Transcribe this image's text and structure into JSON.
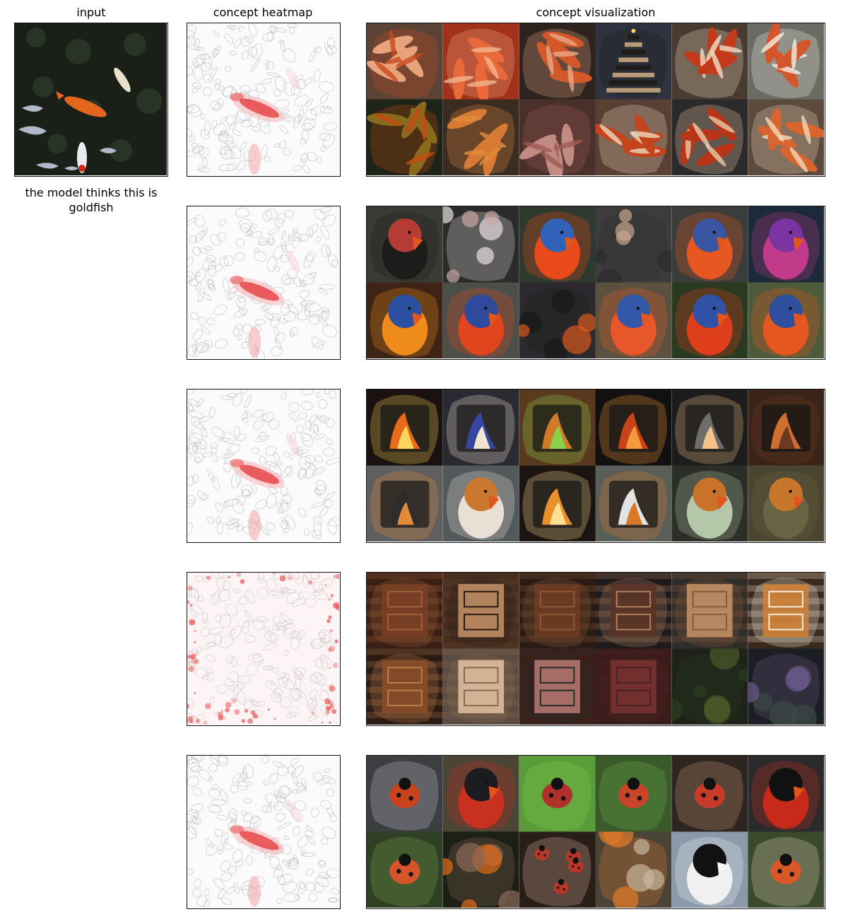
{
  "headers": {
    "input": "input",
    "heatmap": "concept heatmap",
    "visualization": "concept visualization"
  },
  "caption": "the model thinks this is goldfish",
  "input_image": {
    "description_icon": "koi-pond-photo",
    "colors": {
      "water": "#1a1f18",
      "fish": "#e4661e",
      "ripple": "#c9d4ea"
    }
  },
  "concepts": [
    {
      "heatmap_style": "fish-highlight",
      "tiles": [
        {
          "icon": "crab-legs",
          "bg": "#5b4335",
          "fg": "#e8a27c",
          "accent": "#c84a1e"
        },
        {
          "icon": "crab-legs",
          "bg": "#a2331a",
          "fg": "#e9693a",
          "accent": "#f3b58f"
        },
        {
          "icon": "crab-legs",
          "bg": "#2d241f",
          "fg": "#d2582a",
          "accent": "#e9a783"
        },
        {
          "icon": "pagoda",
          "bg": "#2f3340",
          "fg": "#b99a78",
          "accent": "#1e1b18"
        },
        {
          "icon": "crab-legs",
          "bg": "#4a3b31",
          "fg": "#c23a1a",
          "accent": "#f0e0c5"
        },
        {
          "icon": "crab-legs",
          "bg": "#6b6b66",
          "fg": "#d4562b",
          "accent": "#f3efe6"
        },
        {
          "icon": "goldfish-bowl",
          "bg": "#1f2418",
          "fg": "#8a6b1e",
          "accent": "#c64a12"
        },
        {
          "icon": "crab-claw",
          "bg": "#3b2c22",
          "fg": "#d67a34",
          "accent": "#e38b3c"
        },
        {
          "icon": "salmon-dish",
          "bg": "#4a302a",
          "fg": "#c18b82",
          "accent": "#9e5b52"
        },
        {
          "icon": "crab-legs",
          "bg": "#5a3f33",
          "fg": "#c4441c",
          "accent": "#ecd7bf"
        },
        {
          "icon": "crab-legs",
          "bg": "#2b2a2b",
          "fg": "#b93518",
          "accent": "#e8c9a9"
        },
        {
          "icon": "crab-legs",
          "bg": "#5c4a3d",
          "fg": "#d9642d",
          "accent": "#efd9b6"
        }
      ]
    },
    {
      "heatmap_style": "fish-highlight",
      "tiles": [
        {
          "icon": "flamingo",
          "bg": "#3a3b35",
          "fg": "#b53b35",
          "accent": "#1c1c1a"
        },
        {
          "icon": "sea-slug",
          "bg": "#2b2b2b",
          "fg": "#c9a7a4",
          "accent": "#e8e0e0"
        },
        {
          "icon": "lorikeet",
          "bg": "#2f3a2e",
          "fg": "#2f62b8",
          "accent": "#e84a1a"
        },
        {
          "icon": "person-lying",
          "bg": "#3c3c3c",
          "fg": "#c9a790",
          "accent": "#2b2b2b"
        },
        {
          "icon": "lorikeet",
          "bg": "#3a3d39",
          "fg": "#3a55a2",
          "accent": "#e65722"
        },
        {
          "icon": "bird-purple",
          "bg": "#1d2a3a",
          "fg": "#7c33a2",
          "accent": "#c23a8a"
        },
        {
          "icon": "lorikeet",
          "bg": "#3e2417",
          "fg": "#2c4fa0",
          "accent": "#ef8b1a"
        },
        {
          "icon": "lorikeet",
          "bg": "#4a4f4a",
          "fg": "#2f4a9c",
          "accent": "#e0451e"
        },
        {
          "icon": "tool",
          "bg": "#2c2a2e",
          "fg": "#d9591d",
          "accent": "#181818"
        },
        {
          "icon": "lorikeet",
          "bg": "#5a523f",
          "fg": "#3458a8",
          "accent": "#e6582a"
        },
        {
          "icon": "lorikeet",
          "bg": "#2a3a21",
          "fg": "#2f52a6",
          "accent": "#df3e1c"
        },
        {
          "icon": "lorikeet",
          "bg": "#4f5a3a",
          "fg": "#2e4f9e",
          "accent": "#e5571f"
        }
      ]
    },
    {
      "heatmap_style": "fish-highlight",
      "tiles": [
        {
          "icon": "fireplace",
          "bg": "#1a1210",
          "fg": "#e96a1a",
          "accent": "#ffd45a"
        },
        {
          "icon": "stove",
          "bg": "#2a2a33",
          "fg": "#3545a0",
          "accent": "#f2e4d0"
        },
        {
          "icon": "fire-glow",
          "bg": "#5a3a1f",
          "fg": "#d07a2a",
          "accent": "#8ad04a"
        },
        {
          "icon": "fireplace",
          "bg": "#121010",
          "fg": "#c8431a",
          "accent": "#f59a3a"
        },
        {
          "icon": "stove",
          "bg": "#1c1c1c",
          "fg": "#6d6d6d",
          "accent": "#f6c28a"
        },
        {
          "icon": "grate",
          "bg": "#3a2418",
          "fg": "#d07030",
          "accent": "#6b3a20"
        },
        {
          "icon": "pellet-stove",
          "bg": "#5f5f60",
          "fg": "#2c2c2c",
          "accent": "#e28a3a"
        },
        {
          "icon": "robin",
          "bg": "#51595a",
          "fg": "#c9782e",
          "accent": "#e9e0d5"
        },
        {
          "icon": "fire-glow",
          "bg": "#1c1411",
          "fg": "#e8902a",
          "accent": "#fde092"
        },
        {
          "icon": "oven",
          "bg": "#5a5e58",
          "fg": "#e1e4e0",
          "accent": "#d87a2a"
        },
        {
          "icon": "robin",
          "bg": "#2c2f28",
          "fg": "#c8722a",
          "accent": "#b4c7a8"
        },
        {
          "icon": "robin",
          "bg": "#4a4530",
          "fg": "#c7772b",
          "accent": "#6b6444"
        }
      ]
    },
    {
      "heatmap_style": "edge-scatter",
      "tiles": [
        {
          "icon": "wood-door",
          "bg": "#3a1f14",
          "fg": "#7a3f24",
          "accent": "#a0603b"
        },
        {
          "icon": "wood-panel",
          "bg": "#4f3424",
          "fg": "#c6946a",
          "accent": "#2a1a12"
        },
        {
          "icon": "wood-door",
          "bg": "#2a1c15",
          "fg": "#6e3c22",
          "accent": "#8c5838"
        },
        {
          "icon": "dresser",
          "bg": "#1e1a1c",
          "fg": "#5a3324",
          "accent": "#b08060"
        },
        {
          "icon": "dresser",
          "bg": "#2f2d2a",
          "fg": "#c9956a",
          "accent": "#8a5a3a"
        },
        {
          "icon": "wood-cabinet",
          "bg": "#3a2a1d",
          "fg": "#d48235",
          "accent": "#f6eadb"
        },
        {
          "icon": "wood-cabinet",
          "bg": "#2a1b15",
          "fg": "#8a4e2a",
          "accent": "#bc7c48"
        },
        {
          "icon": "wood-panel",
          "bg": "#5b4b40",
          "fg": "#e3c4a3",
          "accent": "#8a6a52"
        },
        {
          "icon": "red-panel",
          "bg": "#3a2018",
          "fg": "#b87a72",
          "accent": "#2a2a2a"
        },
        {
          "icon": "red-panel",
          "bg": "#3a1c1b",
          "fg": "#7a3330",
          "accent": "#4a2424"
        },
        {
          "icon": "pond",
          "bg": "#1e2218",
          "fg": "#4b5a2a",
          "accent": "#2b3d21"
        },
        {
          "icon": "tree",
          "bg": "#1b1e22",
          "fg": "#3a4a45",
          "accent": "#6a5a8a"
        }
      ]
    },
    {
      "heatmap_style": "fish-highlight",
      "tiles": [
        {
          "icon": "ladybug",
          "bg": "#3c3e40",
          "fg": "#c8421c",
          "accent": "#c2c6d0"
        },
        {
          "icon": "blackbird",
          "bg": "#4a4535",
          "fg": "#1a1c20",
          "accent": "#c83020"
        },
        {
          "icon": "ladybug",
          "bg": "#5a9c3a",
          "fg": "#b0302a",
          "accent": "#7fcf4a"
        },
        {
          "icon": "ladybug",
          "bg": "#3a5a2a",
          "fg": "#c8452a",
          "accent": "#6ab04a"
        },
        {
          "icon": "ladybug",
          "bg": "#2e2420",
          "fg": "#c83a2a",
          "accent": "#c49a78"
        },
        {
          "icon": "black-bird",
          "bg": "#2a2b2d",
          "fg": "#111",
          "accent": "#c82a1a"
        },
        {
          "icon": "ladybug",
          "bg": "#304025",
          "fg": "#d6542a",
          "accent": "#7aa24a"
        },
        {
          "icon": "chainsaw",
          "bg": "#1b1f14",
          "fg": "#e26a1a",
          "accent": "#8a6a5a"
        },
        {
          "icon": "ladybug-cluster",
          "bg": "#2a1e18",
          "fg": "#b8372a",
          "accent": "#d8b8a0"
        },
        {
          "icon": "owls",
          "bg": "#4a4438",
          "fg": "#c8b8a0",
          "accent": "#e07a2a"
        },
        {
          "icon": "coot",
          "bg": "#8a9aaa",
          "fg": "#111",
          "accent": "#f0f0f0"
        },
        {
          "icon": "ladybug",
          "bg": "#3a4a2a",
          "fg": "#d8582a",
          "accent": "#e6d0c0"
        }
      ]
    }
  ]
}
